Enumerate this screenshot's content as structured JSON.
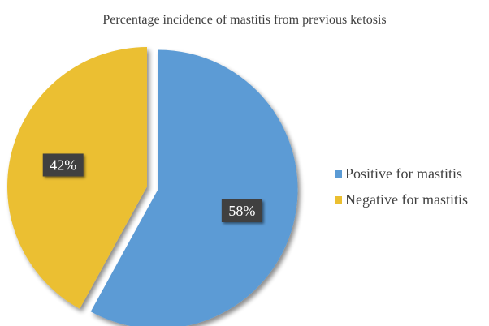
{
  "chart_data": {
    "type": "pie",
    "title": "Percentage incidence of mastitis from previous ketosis",
    "slices": [
      {
        "label": "Positive for mastitis",
        "value": 58,
        "display": "58%",
        "color": "#5b9bd5",
        "exploded": true
      },
      {
        "label": "Negative for mastitis",
        "value": 42,
        "display": "42%",
        "color": "#ebbf30",
        "exploded": false
      }
    ],
    "legend_position": "right",
    "data_label_style": {
      "background": "#404040",
      "text_color": "#ffffff"
    }
  }
}
